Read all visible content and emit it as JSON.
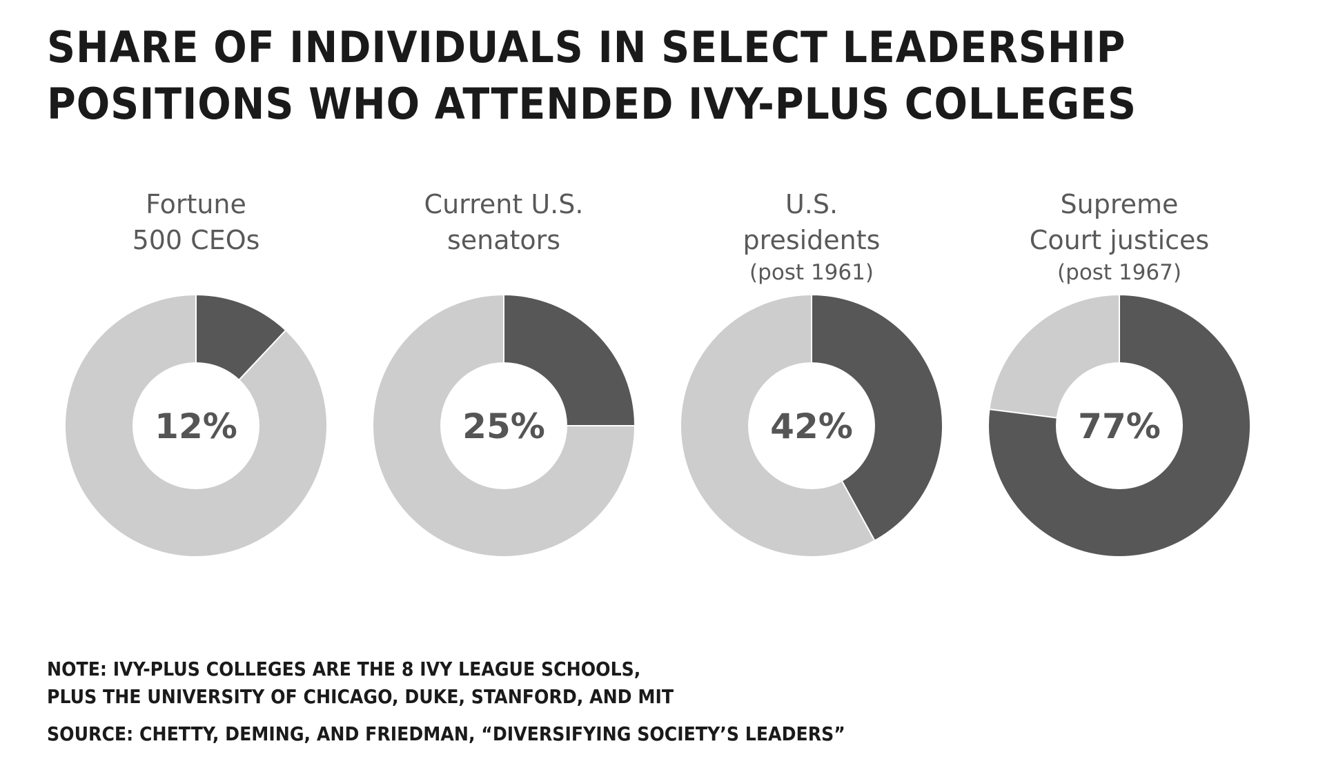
{
  "title": {
    "line1": "Share of individuals in select leadership",
    "line2": "positions who attended Ivy-Plus colleges"
  },
  "colors": {
    "ivy_plus": "#575757",
    "other": "#cdcdcd",
    "center_text": "#555555",
    "label_text": "#595959"
  },
  "chart_data": {
    "type": "pie",
    "title": "Share of individuals in select leadership positions who attended Ivy-Plus colleges",
    "xlabel": "",
    "ylabel": "",
    "unit": "%",
    "donut": true,
    "categories": [
      "Fortune 500 CEOs",
      "Current U.S. senators",
      "U.S. presidents (post 1961)",
      "Supreme Court justices (post 1967)"
    ],
    "charts": [
      {
        "label_lines": [
          "Fortune",
          "500 CEOs"
        ],
        "sub_label": "",
        "value": 12,
        "value_label": "12%"
      },
      {
        "label_lines": [
          "Current U.S.",
          "senators"
        ],
        "sub_label": "",
        "value": 25,
        "value_label": "25%"
      },
      {
        "label_lines": [
          "U.S.",
          "presidents"
        ],
        "sub_label": "(post 1961)",
        "value": 42,
        "value_label": "42%"
      },
      {
        "label_lines": [
          "Supreme",
          "Court justices"
        ],
        "sub_label": "(post 1967)",
        "value": 77,
        "value_label": "77%"
      }
    ]
  },
  "notes": {
    "note_line1": "Note: Ivy-Plus colleges are the 8 Ivy League schools,",
    "note_line2": "plus the University of Chicago, Duke, Stanford, and MIT",
    "source": "Source: Chetty, Deming, and Friedman, “Diversifying Society’s Leaders”"
  }
}
